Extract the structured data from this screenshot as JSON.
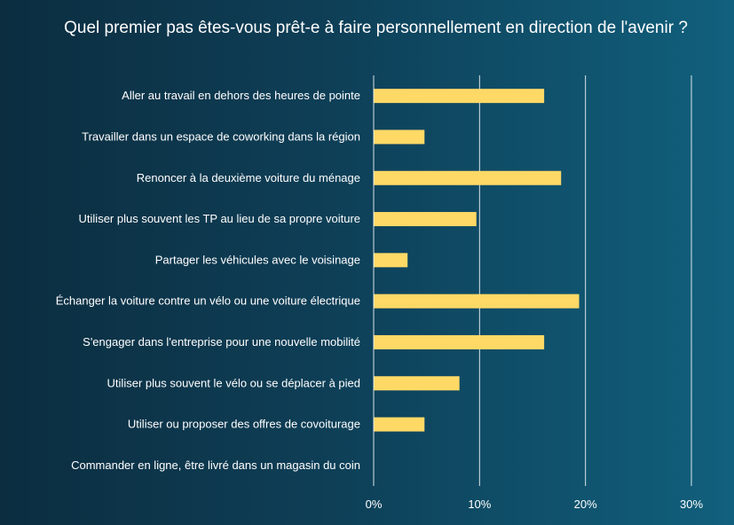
{
  "chart_data": {
    "type": "bar",
    "orientation": "horizontal",
    "title": "Quel premier pas êtes-vous prêt-e à faire personnellement  en direction de l'avenir ?",
    "categories": [
      "Aller au travail en dehors des heures de pointe",
      "Travailler dans un espace de coworking dans la région",
      "Renoncer à la deuxième voiture du ménage",
      "Utiliser plus souvent les TP au lieu de sa propre voiture",
      "Partager les véhicules avec le voisinage",
      "Échanger la voiture contre un vélo ou une voiture électrique",
      "S'engager dans l'entreprise pour une nouvelle mobilité",
      "Utiliser plus souvent le vélo ou se déplacer à pied",
      "Utiliser ou proposer des offres de covoiturage",
      "Commander en ligne, être livré dans un magasin du coin"
    ],
    "values": [
      16.1,
      4.8,
      17.7,
      9.7,
      3.2,
      19.4,
      16.1,
      8.1,
      4.8,
      0
    ],
    "xlim": [
      0,
      30
    ],
    "xticks": [
      0,
      10,
      20,
      30
    ],
    "xtick_labels": [
      "0%",
      "10%",
      "20%",
      "30%"
    ],
    "grid": true,
    "bar_color": "#ffd966",
    "text_color": "#ffffff",
    "grid_color": "#ffffff"
  }
}
